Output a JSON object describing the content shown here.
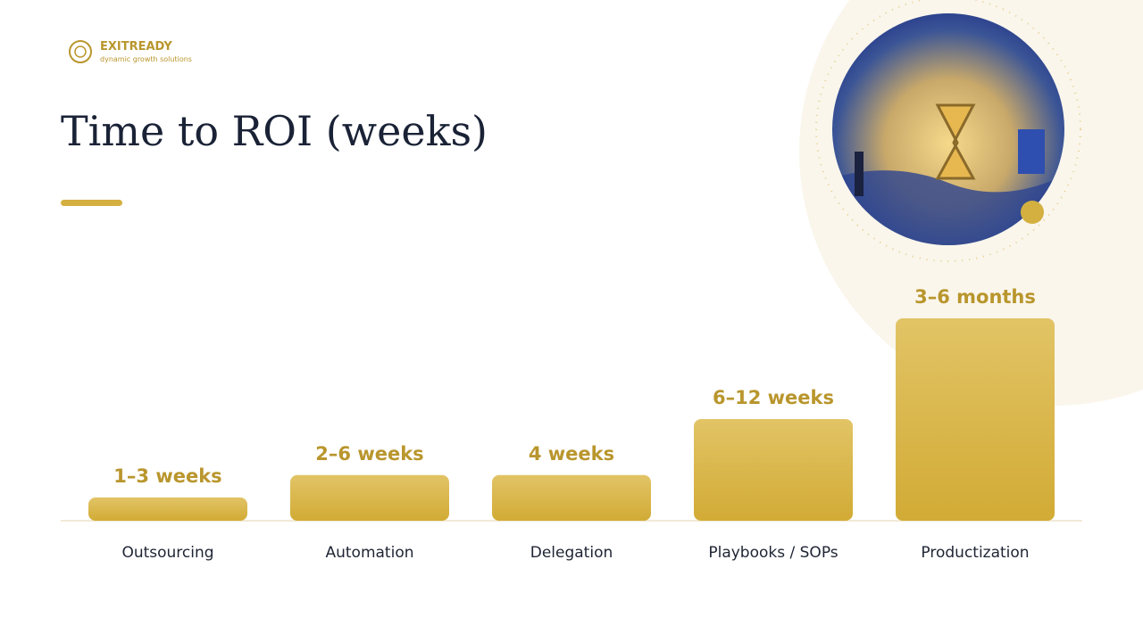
{
  "brand": {
    "name": "EXITREADY",
    "tagline": "dynamic growth solutions"
  },
  "chart_data": {
    "type": "bar",
    "title": "Time to ROI (weeks)",
    "categories": [
      "Outsourcing",
      "Automation",
      "Delegation",
      "Playbooks / SOPs",
      "Productization"
    ],
    "values": [
      2,
      4,
      4,
      9,
      18
    ],
    "value_labels": [
      "1–3 weeks",
      "2–6 weeks",
      "4 weeks",
      "6–12 weeks",
      "3–6 months"
    ],
    "color": "#d4b040",
    "ylim": [
      0,
      18
    ]
  }
}
